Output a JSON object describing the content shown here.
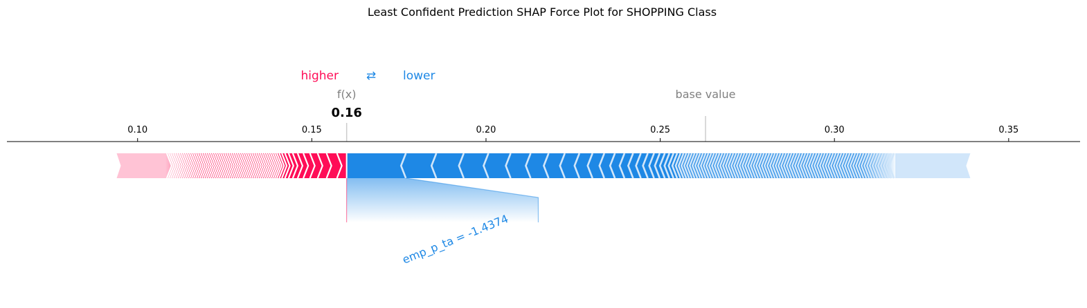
{
  "chart_data": {
    "type": "force",
    "title": "Least Confident Prediction SHAP Force Plot for SHOPPING Class",
    "legend": {
      "higher": "higher",
      "arrows": "⇄",
      "lower": "lower"
    },
    "fx": {
      "label": "f(x)",
      "value": 0.16,
      "value_text": "0.16"
    },
    "base_value": {
      "label": "base value",
      "value": 0.263
    },
    "xlim": [
      0.0625,
      0.3705
    ],
    "ticks": [
      0.1,
      0.15,
      0.2,
      0.25,
      0.3,
      0.35
    ],
    "tick_labels": [
      "0.10",
      "0.15",
      "0.20",
      "0.25",
      "0.30",
      "0.35"
    ],
    "positive": {
      "start": 0.094,
      "end": 0.16
    },
    "negative": {
      "start": 0.16,
      "end": 0.339
    },
    "feature_annotations": [
      {
        "text": "emp_p_ta = -1.4374",
        "from": 0.177,
        "to": 0.215
      }
    ],
    "colors": {
      "positive": "#ff0d57",
      "positive_light": "#ffc3d5",
      "negative": "#1e88e5",
      "negative_light": "#d1e6fa",
      "base_line": "#cccccc"
    }
  }
}
